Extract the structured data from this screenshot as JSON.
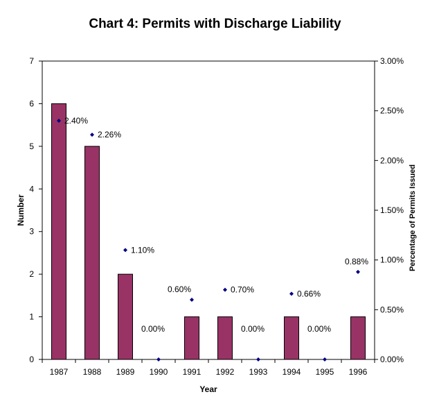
{
  "chart_data": {
    "type": "bar",
    "title": "Chart 4:  Permits with Discharge Liability",
    "xlabel": "Year",
    "ylabel": "Number",
    "y2label": "Percentage of Permits Issued",
    "categories": [
      "1987",
      "1988",
      "1989",
      "1990",
      "1991",
      "1992",
      "1993",
      "1994",
      "1995",
      "1996"
    ],
    "series": [
      {
        "type": "bar",
        "values": [
          6,
          5,
          2,
          0,
          1,
          1,
          0,
          1,
          0,
          1
        ],
        "color": "#993366"
      },
      {
        "type": "scatter",
        "axis": "right",
        "values": [
          2.4,
          2.26,
          1.1,
          0.0,
          0.6,
          0.7,
          0.0,
          0.66,
          0.0,
          0.88
        ],
        "labels": [
          "2.40%",
          "2.26%",
          "1.10%",
          "0.00%",
          "0.60%",
          "0.70%",
          "0.00%",
          "0.66%",
          "0.00%",
          "0.88%"
        ],
        "color": "#000080"
      }
    ],
    "ylim": [
      0,
      7
    ],
    "yticks": [
      "0",
      "1",
      "2",
      "3",
      "4",
      "5",
      "6",
      "7"
    ],
    "y2lim": [
      0,
      3
    ],
    "y2ticks": [
      "0.00%",
      "0.50%",
      "1.00%",
      "1.50%",
      "2.00%",
      "2.50%",
      "3.00%"
    ],
    "grid": false,
    "legend": "none"
  }
}
